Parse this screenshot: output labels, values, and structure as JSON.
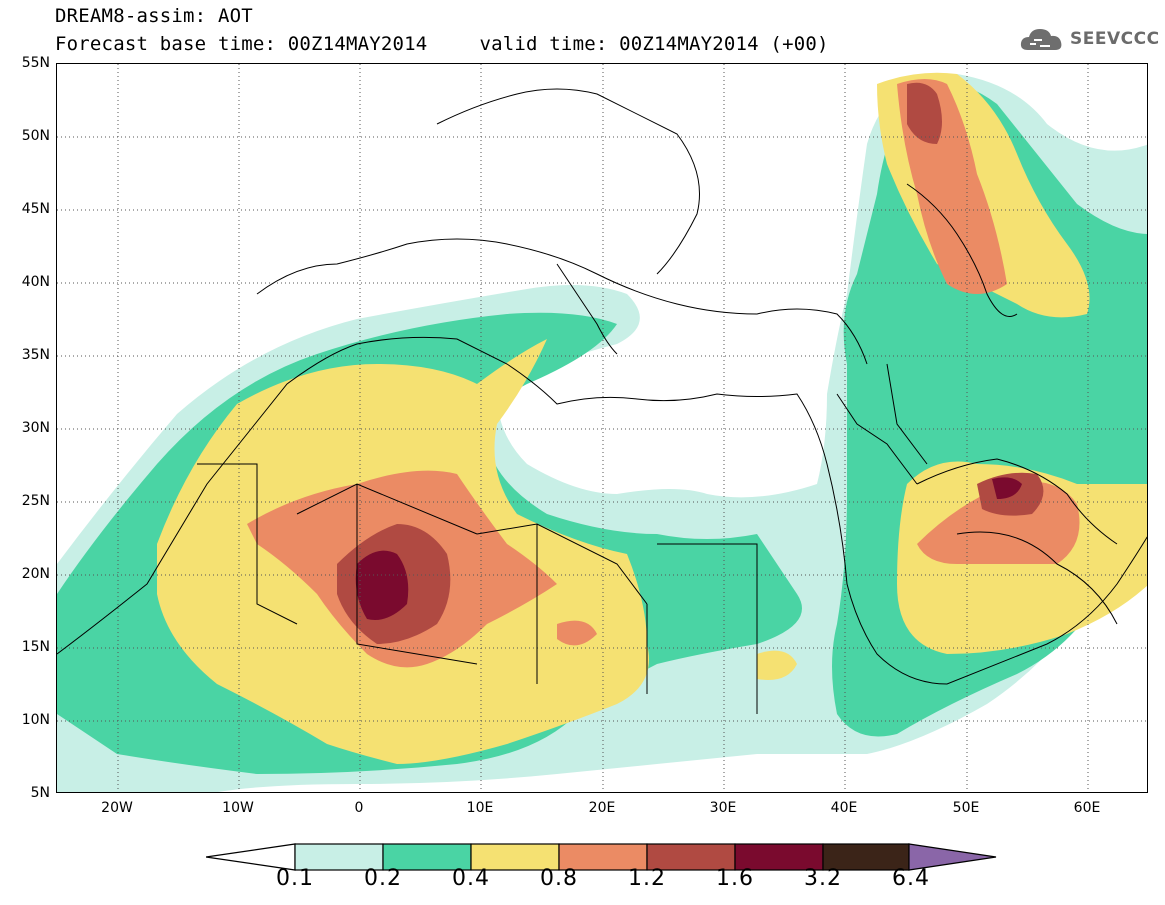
{
  "header": {
    "title_line1": "DREAM8-assim: AOT",
    "forecast_label": "Forecast base time: 00Z14MAY2014",
    "valid_label": "valid time: 00Z14MAY2014 (+00)"
  },
  "logo": {
    "text": "SEEVCCC",
    "icon": "cloud-icon"
  },
  "map": {
    "lat_labels": [
      "55N",
      "50N",
      "45N",
      "40N",
      "35N",
      "30N",
      "25N",
      "20N",
      "15N",
      "10N",
      "5N"
    ],
    "lon_labels": [
      "20W",
      "10W",
      "0",
      "10E",
      "20E",
      "30E",
      "40E",
      "50E",
      "60E"
    ],
    "lon_range": [
      -25,
      65
    ],
    "lat_range": [
      5,
      55
    ],
    "grid_lines": true,
    "field": "Aerosol optical thickness (dust)"
  },
  "colorbar": {
    "levels": [
      "0.1",
      "0.2",
      "0.4",
      "0.8",
      "1.2",
      "1.6",
      "3.2",
      "6.4"
    ],
    "colors": [
      "#ffffff",
      "#c8efe6",
      "#4ad4a4",
      "#f5e172",
      "#eb8b64",
      "#b04a42",
      "#7a0a2e",
      "#3b2418",
      "#8a66a8"
    ]
  }
}
